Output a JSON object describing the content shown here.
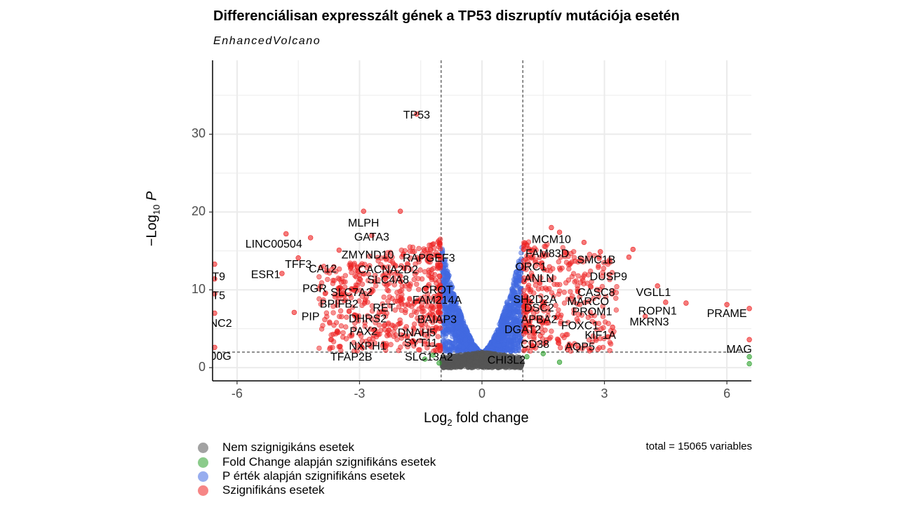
{
  "chart_data": {
    "type": "scatter",
    "title": "Differenciálisan expresszált gének a TP53 diszruptív mutációja esetén",
    "subtitle": "EnhancedVolcano",
    "xlabel": {
      "prefix": "Log",
      "sub": "2",
      "suffix": " fold change"
    },
    "ylabel": {
      "prefix": "−Log",
      "sub": "10",
      "suffix": " P"
    },
    "xlim": [
      -6.6,
      6.6
    ],
    "ylim": [
      -1.7,
      39.5
    ],
    "x_ticks": [
      -6,
      -3,
      0,
      3,
      6
    ],
    "x_tick_labels": [
      "-6",
      "-3",
      "0",
      "3",
      "6"
    ],
    "y_ticks": [
      0,
      10,
      20,
      30
    ],
    "y_tick_labels": [
      "0",
      "10",
      "20",
      "30"
    ],
    "grid": true,
    "fc_cutoff": 1,
    "p_cutoff": 2,
    "caption": "total = 15065 variables",
    "legend": {
      "placement": "bottom",
      "items": [
        {
          "label": "Nem szignigikáns esetek",
          "color": "#555555"
        },
        {
          "label": "Fold Change alapján szignifikáns esetek",
          "color": "#2ca02c"
        },
        {
          "label": "P érték alapján szignifikáns esetek",
          "color": "#4169e1"
        },
        {
          "label": "Szignifikáns esetek",
          "color": "#ee2222"
        }
      ]
    },
    "colors": {
      "ns": "#555555",
      "fc": "#2ca02c",
      "p": "#4169e1",
      "sig": "#ee2222"
    },
    "labeled_genes": [
      {
        "label": "TP53",
        "x": -1.6,
        "y": 32.4
      },
      {
        "label": "MLPH",
        "x": -2.9,
        "y": 18.5
      },
      {
        "label": "GATA3",
        "x": -2.7,
        "y": 16.7
      },
      {
        "label": "LINC00504",
        "x": -5.1,
        "y": 15.8
      },
      {
        "label": "ZMYND10",
        "x": -2.8,
        "y": 14.4
      },
      {
        "label": "RAPGEF3",
        "x": -1.3,
        "y": 14.0
      },
      {
        "label": "TFF3",
        "x": -4.5,
        "y": 13.2
      },
      {
        "label": "CA12",
        "x": -3.9,
        "y": 12.6
      },
      {
        "label": "CACNA2D2",
        "x": -2.3,
        "y": 12.5
      },
      {
        "label": "ESR1",
        "x": -5.3,
        "y": 11.9
      },
      {
        "label": "SLC4A8",
        "x": -2.3,
        "y": 11.2
      },
      {
        "label": "PGR",
        "x": -4.1,
        "y": 10.1
      },
      {
        "label": "SLC7A2",
        "x": -3.2,
        "y": 9.6
      },
      {
        "label": "CROT",
        "x": -1.1,
        "y": 9.9
      },
      {
        "label": "FAM214A",
        "x": -1.1,
        "y": 8.6
      },
      {
        "label": "BPIFB2",
        "x": -3.5,
        "y": 8.1
      },
      {
        "label": "RET",
        "x": -2.4,
        "y": 7.6
      },
      {
        "label": "PIP",
        "x": -4.2,
        "y": 6.5
      },
      {
        "label": "DHRS2",
        "x": -2.8,
        "y": 6.2
      },
      {
        "label": "BAIAP3",
        "x": -1.1,
        "y": 6.1
      },
      {
        "label": "PAX2",
        "x": -2.9,
        "y": 4.6
      },
      {
        "label": "DNAH5",
        "x": -1.6,
        "y": 4.4
      },
      {
        "label": "SYT11",
        "x": -1.5,
        "y": 3.1
      },
      {
        "label": "NXPH1",
        "x": -2.8,
        "y": 2.7
      },
      {
        "label": "TFAP2B",
        "x": -3.2,
        "y": 1.3
      },
      {
        "label": "SLC13A2",
        "x": -1.3,
        "y": 1.3
      },
      {
        "label": "T9",
        "x": -6.45,
        "y": 11.6
      },
      {
        "label": "T5",
        "x": -6.45,
        "y": 9.2
      },
      {
        "label": "NC2",
        "x": -6.4,
        "y": 5.6
      },
      {
        "label": "00G",
        "x": -6.4,
        "y": 1.4
      },
      {
        "label": "MCM10",
        "x": 1.7,
        "y": 16.4
      },
      {
        "label": "FAM83D",
        "x": 1.6,
        "y": 14.6
      },
      {
        "label": "SMC1B",
        "x": 2.8,
        "y": 13.8
      },
      {
        "label": "ORC1",
        "x": 1.2,
        "y": 12.9
      },
      {
        "label": "DUSP9",
        "x": 3.1,
        "y": 11.6
      },
      {
        "label": "ANLN",
        "x": 1.4,
        "y": 11.4
      },
      {
        "label": "CASC8",
        "x": 2.8,
        "y": 9.6
      },
      {
        "label": "VGLL1",
        "x": 4.2,
        "y": 9.6
      },
      {
        "label": "SH2D2A",
        "x": 1.3,
        "y": 8.7
      },
      {
        "label": "MARCO",
        "x": 2.6,
        "y": 8.4
      },
      {
        "label": "DSC2",
        "x": 1.4,
        "y": 7.6
      },
      {
        "label": "PROM1",
        "x": 2.7,
        "y": 7.1
      },
      {
        "label": "ROPN1",
        "x": 4.3,
        "y": 7.2
      },
      {
        "label": "PRAME",
        "x": 6.0,
        "y": 6.9
      },
      {
        "label": "APBA2",
        "x": 1.4,
        "y": 6.1
      },
      {
        "label": "MKRN3",
        "x": 4.1,
        "y": 5.8
      },
      {
        "label": "FOXC1",
        "x": 2.4,
        "y": 5.3
      },
      {
        "label": "DGAT2",
        "x": 1.0,
        "y": 4.8
      },
      {
        "label": "KIF1A",
        "x": 2.9,
        "y": 4.1
      },
      {
        "label": "CD38",
        "x": 1.3,
        "y": 2.9
      },
      {
        "label": "AQP5",
        "x": 2.4,
        "y": 2.6
      },
      {
        "label": "MAG",
        "x": 6.3,
        "y": 2.3
      },
      {
        "label": "CHI3L2",
        "x": 0.6,
        "y": 0.9
      }
    ],
    "highlight_points": [
      {
        "x": -1.6,
        "y": 32.6,
        "cat": "sig"
      },
      {
        "x": -2.9,
        "y": 20.1,
        "cat": "sig"
      },
      {
        "x": -2.0,
        "y": 20.1,
        "cat": "sig"
      },
      {
        "x": -4.8,
        "y": 17.2,
        "cat": "sig"
      },
      {
        "x": -4.2,
        "y": 16.7,
        "cat": "sig"
      },
      {
        "x": -2.7,
        "y": 17.0,
        "cat": "sig"
      },
      {
        "x": -3.5,
        "y": 15.1,
        "cat": "sig"
      },
      {
        "x": -4.5,
        "y": 14.1,
        "cat": "sig"
      },
      {
        "x": -6.55,
        "y": 13.3,
        "cat": "sig"
      },
      {
        "x": -6.55,
        "y": 11.4,
        "cat": "sig"
      },
      {
        "x": -6.55,
        "y": 9.5,
        "cat": "sig"
      },
      {
        "x": -6.55,
        "y": 7.0,
        "cat": "sig"
      },
      {
        "x": -6.55,
        "y": 2.6,
        "cat": "sig"
      },
      {
        "x": -4.6,
        "y": 7.1,
        "cat": "sig"
      },
      {
        "x": -4.9,
        "y": 12.1,
        "cat": "sig"
      },
      {
        "x": 1.7,
        "y": 18.0,
        "cat": "sig"
      },
      {
        "x": 1.9,
        "y": 17.4,
        "cat": "sig"
      },
      {
        "x": 2.5,
        "y": 16.1,
        "cat": "sig"
      },
      {
        "x": 3.7,
        "y": 15.2,
        "cat": "sig"
      },
      {
        "x": 3.6,
        "y": 14.2,
        "cat": "sig"
      },
      {
        "x": 2.9,
        "y": 14.9,
        "cat": "sig"
      },
      {
        "x": 4.3,
        "y": 10.5,
        "cat": "sig"
      },
      {
        "x": 4.5,
        "y": 8.4,
        "cat": "sig"
      },
      {
        "x": 5.0,
        "y": 8.3,
        "cat": "sig"
      },
      {
        "x": 6.0,
        "y": 8.1,
        "cat": "sig"
      },
      {
        "x": 6.55,
        "y": 7.6,
        "cat": "sig"
      },
      {
        "x": 4.0,
        "y": 6.6,
        "cat": "sig"
      },
      {
        "x": 3.2,
        "y": 5.2,
        "cat": "sig"
      },
      {
        "x": 6.55,
        "y": 3.6,
        "cat": "sig"
      },
      {
        "x": 6.55,
        "y": 1.4,
        "cat": "fc"
      },
      {
        "x": 6.55,
        "y": 0.5,
        "cat": "fc"
      },
      {
        "x": 1.5,
        "y": 1.8,
        "cat": "fc"
      },
      {
        "x": 1.9,
        "y": 0.7,
        "cat": "fc"
      },
      {
        "x": -1.2,
        "y": 1.6,
        "cat": "fc"
      },
      {
        "x": -1.4,
        "y": 1.1,
        "cat": "fc"
      },
      {
        "x": -1.05,
        "y": 0.6,
        "cat": "fc"
      },
      {
        "x": 1.1,
        "y": 1.4,
        "cat": "fc"
      }
    ]
  }
}
